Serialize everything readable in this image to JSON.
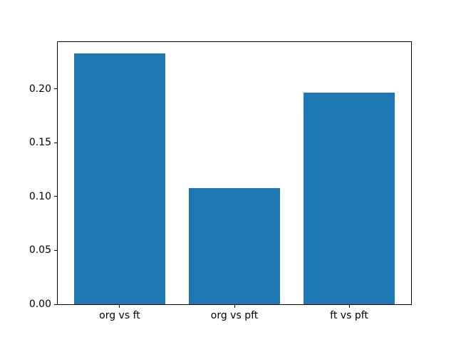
{
  "figure": {
    "background": "#ffffff"
  },
  "chart_data": {
    "type": "bar",
    "categories": [
      "org vs ft",
      "org vs pft",
      "ft vs pft"
    ],
    "values": [
      0.233,
      0.108,
      0.197
    ],
    "title": "",
    "xlabel": "",
    "ylabel": "",
    "xlim": [
      -0.54,
      2.54
    ],
    "ylim": [
      0,
      0.2437
    ],
    "yticks": [
      0.0,
      0.05,
      0.1,
      0.15,
      0.2
    ],
    "ytick_labels": [
      "0.00",
      "0.05",
      "0.10",
      "0.15",
      "0.20"
    ],
    "bar_width": 0.8,
    "bar_color": "#1f77b4",
    "spine_color": "#000000",
    "tick_color": "#000000",
    "grid": false,
    "legend_position": null
  }
}
